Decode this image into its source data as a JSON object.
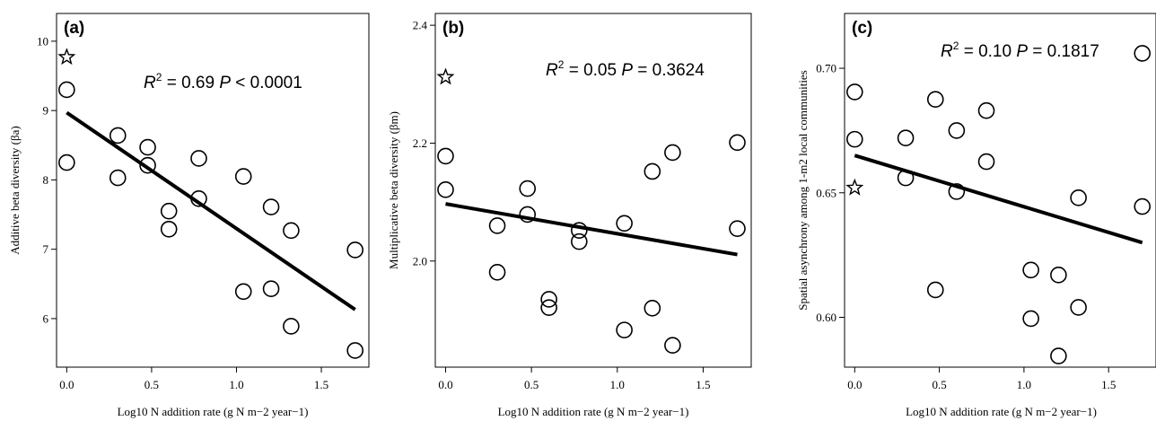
{
  "chart_data": [
    {
      "type": "scatter",
      "panel": "(a)",
      "ylabel": "Additive beta diversity (βa)",
      "xlabel": "Log10 N addition rate (g N m−2 year−1)",
      "xlim": [
        -0.06,
        1.78
      ],
      "ylim": [
        5.3,
        10.4
      ],
      "xticks": [
        "0.0",
        "0.5",
        "1.0",
        "1.5"
      ],
      "yticks": [
        "6",
        "7",
        "8",
        "9",
        "10"
      ],
      "annotation": {
        "r2_label": "R",
        "r2_sup": "2",
        "r2_value": " = 0.69 ",
        "p_label": "P",
        "p_value": " < 0.0001"
      },
      "star": {
        "x": 0.0,
        "y": 9.77
      },
      "points": [
        {
          "x": 0.0,
          "y": 9.3
        },
        {
          "x": 0.0,
          "y": 8.25
        },
        {
          "x": 0.301,
          "y": 8.64
        },
        {
          "x": 0.301,
          "y": 8.03
        },
        {
          "x": 0.477,
          "y": 8.47
        },
        {
          "x": 0.477,
          "y": 8.21
        },
        {
          "x": 0.602,
          "y": 7.55
        },
        {
          "x": 0.602,
          "y": 7.29
        },
        {
          "x": 0.778,
          "y": 8.31
        },
        {
          "x": 0.778,
          "y": 7.73
        },
        {
          "x": 1.041,
          "y": 8.05
        },
        {
          "x": 1.041,
          "y": 6.39
        },
        {
          "x": 1.204,
          "y": 7.61
        },
        {
          "x": 1.204,
          "y": 6.43
        },
        {
          "x": 1.322,
          "y": 7.27
        },
        {
          "x": 1.322,
          "y": 5.89
        },
        {
          "x": 1.699,
          "y": 6.99
        },
        {
          "x": 1.699,
          "y": 5.54
        }
      ],
      "fit": {
        "x": [
          0.0,
          1.699
        ],
        "y": [
          8.97,
          6.13
        ]
      }
    },
    {
      "type": "scatter",
      "panel": "(b)",
      "ylabel": "Multiplicative beta diversity (βm)",
      "xlabel": "Log10 N addition rate (g N m−2 year−1)",
      "xlim": [
        -0.06,
        1.78
      ],
      "ylim": [
        1.82,
        2.42
      ],
      "xticks": [
        "0.0",
        "0.5",
        "1.0",
        "1.5"
      ],
      "yticks": [
        "2.0",
        "2.2",
        "2.4"
      ],
      "annotation": {
        "r2_label": "R",
        "r2_sup": "2",
        "r2_value": " = 0.05 ",
        "p_label": "P",
        "p_value": " = 0.3624"
      },
      "star": {
        "x": 0.0,
        "y": 2.312
      },
      "points": [
        {
          "x": 0.0,
          "y": 2.178
        },
        {
          "x": 0.0,
          "y": 2.121
        },
        {
          "x": 0.301,
          "y": 2.06
        },
        {
          "x": 0.301,
          "y": 1.981
        },
        {
          "x": 0.477,
          "y": 2.123
        },
        {
          "x": 0.477,
          "y": 2.079
        },
        {
          "x": 0.602,
          "y": 1.935
        },
        {
          "x": 0.602,
          "y": 1.921
        },
        {
          "x": 0.778,
          "y": 2.052
        },
        {
          "x": 0.778,
          "y": 2.033
        },
        {
          "x": 1.041,
          "y": 2.064
        },
        {
          "x": 1.041,
          "y": 1.883
        },
        {
          "x": 1.204,
          "y": 2.152
        },
        {
          "x": 1.204,
          "y": 1.92
        },
        {
          "x": 1.322,
          "y": 2.184
        },
        {
          "x": 1.322,
          "y": 1.857
        },
        {
          "x": 1.699,
          "y": 2.201
        },
        {
          "x": 1.699,
          "y": 2.055
        }
      ],
      "fit": {
        "x": [
          0.0,
          1.699
        ],
        "y": [
          2.097,
          2.011
        ]
      }
    },
    {
      "type": "scatter",
      "panel": "(c)",
      "ylabel": "Spatial asynchrony among 1-m2 local communities",
      "xlabel": "Log10 N addition rate (g N m−2 year−1)",
      "xlim": [
        -0.06,
        1.78
      ],
      "ylim": [
        0.58,
        0.722
      ],
      "xticks": [
        "0.0",
        "0.5",
        "1.0",
        "1.5"
      ],
      "yticks": [
        "0.60",
        "0.65",
        "0.70"
      ],
      "annotation": {
        "r2_label": "R",
        "r2_sup": "2",
        "r2_value": " = 0.10 ",
        "p_label": "P",
        "p_value": " = 0.1817"
      },
      "star": {
        "x": 0.0,
        "y": 0.652
      },
      "points": [
        {
          "x": 0.0,
          "y": 0.6905
        },
        {
          "x": 0.0,
          "y": 0.6715
        },
        {
          "x": 0.301,
          "y": 0.672
        },
        {
          "x": 0.301,
          "y": 0.656
        },
        {
          "x": 0.477,
          "y": 0.6875
        },
        {
          "x": 0.477,
          "y": 0.611
        },
        {
          "x": 0.602,
          "y": 0.675
        },
        {
          "x": 0.602,
          "y": 0.6505
        },
        {
          "x": 0.778,
          "y": 0.683
        },
        {
          "x": 0.778,
          "y": 0.6625
        },
        {
          "x": 1.041,
          "y": 0.619
        },
        {
          "x": 1.041,
          "y": 0.5995
        },
        {
          "x": 1.204,
          "y": 0.617
        },
        {
          "x": 1.204,
          "y": 0.5845
        },
        {
          "x": 1.322,
          "y": 0.648
        },
        {
          "x": 1.322,
          "y": 0.604
        },
        {
          "x": 1.699,
          "y": 0.706
        },
        {
          "x": 1.699,
          "y": 0.6445
        }
      ],
      "fit": {
        "x": [
          0.0,
          1.699
        ],
        "y": [
          0.665,
          0.63
        ]
      }
    }
  ]
}
